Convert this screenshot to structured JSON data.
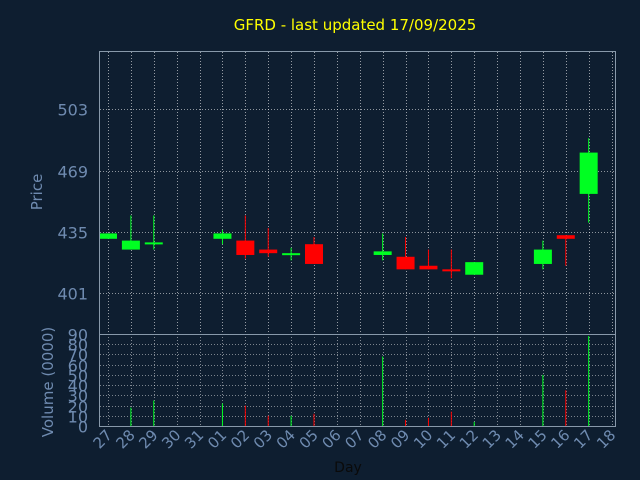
{
  "chart_data": [
    {
      "type": "candlestick",
      "title": "GFRD - last updated 17/09/2025",
      "ylabel": "Price",
      "xlabel": "",
      "ylim": [
        378,
        535
      ],
      "yticks": [
        401,
        435,
        469,
        503
      ],
      "grid": true,
      "categories": [
        "27",
        "28",
        "29",
        "30",
        "31",
        "01",
        "02",
        "03",
        "04",
        "05",
        "06",
        "07",
        "08",
        "09",
        "10",
        "11",
        "12",
        "13",
        "14",
        "15",
        "16",
        "17",
        "18"
      ],
      "candles": [
        {
          "day": "27",
          "open": 431,
          "close": 434,
          "high": 434,
          "low": 431
        },
        {
          "day": "28",
          "open": 425,
          "close": 430,
          "high": 444,
          "low": 425
        },
        {
          "day": "29",
          "open": 428,
          "close": 429,
          "high": 444,
          "low": 425
        },
        {
          "day": "01",
          "open": 431,
          "close": 434,
          "high": 436,
          "low": 428
        },
        {
          "day": "02",
          "open": 430,
          "close": 422,
          "high": 444,
          "low": 420
        },
        {
          "day": "03",
          "open": 425,
          "close": 423,
          "high": 437,
          "low": 421
        },
        {
          "day": "04",
          "open": 422,
          "close": 423,
          "high": 426,
          "low": 419
        },
        {
          "day": "05",
          "open": 428,
          "close": 417,
          "high": 432,
          "low": 417
        },
        {
          "day": "08",
          "open": 422,
          "close": 424,
          "high": 434,
          "low": 419
        },
        {
          "day": "09",
          "open": 421,
          "close": 414,
          "high": 432,
          "low": 414
        },
        {
          "day": "10",
          "open": 416,
          "close": 414,
          "high": 425,
          "low": 414
        },
        {
          "day": "11",
          "open": 414,
          "close": 413,
          "high": 425,
          "low": 409
        },
        {
          "day": "12",
          "open": 411,
          "close": 418,
          "high": 418,
          "low": 411
        },
        {
          "day": "15",
          "open": 417,
          "close": 425,
          "high": 430,
          "low": 414
        },
        {
          "day": "16",
          "open": 433,
          "close": 431,
          "high": 433,
          "low": 416
        },
        {
          "day": "17",
          "open": 456,
          "close": 479,
          "high": 487,
          "low": 440
        }
      ]
    },
    {
      "type": "bar",
      "ylabel": "Volume (0000)",
      "xlabel": "Day",
      "ylim": [
        0,
        90
      ],
      "yticks": [
        0,
        10,
        20,
        30,
        40,
        50,
        60,
        70,
        80,
        90
      ],
      "grid": true,
      "categories": [
        "27",
        "28",
        "29",
        "30",
        "31",
        "01",
        "02",
        "03",
        "04",
        "05",
        "06",
        "07",
        "08",
        "09",
        "10",
        "11",
        "12",
        "13",
        "14",
        "15",
        "16",
        "17",
        "18"
      ],
      "bars": [
        {
          "day": "27",
          "value": 0,
          "direction": "down"
        },
        {
          "day": "28",
          "value": 18,
          "direction": "up"
        },
        {
          "day": "29",
          "value": 25,
          "direction": "up"
        },
        {
          "day": "01",
          "value": 22,
          "direction": "up"
        },
        {
          "day": "02",
          "value": 20,
          "direction": "down"
        },
        {
          "day": "03",
          "value": 10,
          "direction": "down"
        },
        {
          "day": "04",
          "value": 10,
          "direction": "up"
        },
        {
          "day": "05",
          "value": 12,
          "direction": "down"
        },
        {
          "day": "08",
          "value": 68,
          "direction": "up"
        },
        {
          "day": "09",
          "value": 6,
          "direction": "down"
        },
        {
          "day": "10",
          "value": 8,
          "direction": "down"
        },
        {
          "day": "11",
          "value": 14,
          "direction": "down"
        },
        {
          "day": "12",
          "value": 4,
          "direction": "up"
        },
        {
          "day": "15",
          "value": 50,
          "direction": "up"
        },
        {
          "day": "16",
          "value": 35,
          "direction": "down"
        },
        {
          "day": "17",
          "value": 88,
          "direction": "up"
        }
      ]
    }
  ],
  "colors": {
    "background": "#0e1e30",
    "axis_text": "#6f8bb0",
    "title": "#ffff00",
    "xlabel": "#0a0a0a",
    "up": "#00ff22",
    "down": "#ff0000",
    "frame": "#8899aa",
    "grid": "#ffffff"
  }
}
